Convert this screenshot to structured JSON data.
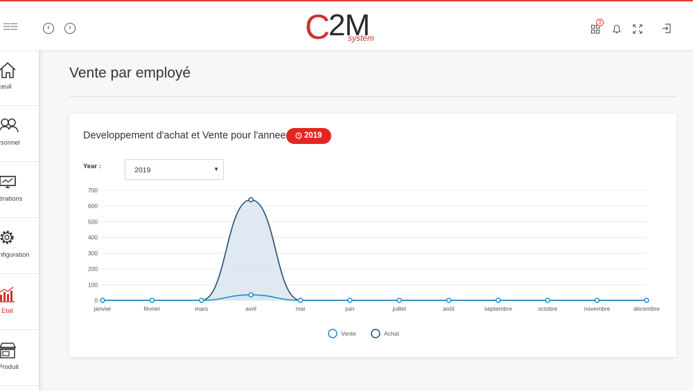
{
  "header": {
    "logo_main_c": "C",
    "logo_main_rest": "2M",
    "logo_sub": "system",
    "notification_count": "3"
  },
  "sidebar": {
    "items": [
      {
        "label": "Acceuil",
        "icon": "home-icon",
        "active": false
      },
      {
        "label": "Personnel",
        "icon": "users-icon",
        "active": false
      },
      {
        "label": "Opérations",
        "icon": "monitor-icon",
        "active": false
      },
      {
        "label": "Configuration",
        "icon": "gear-icon",
        "active": false
      },
      {
        "label": "Etat",
        "icon": "bar-chart-icon",
        "active": true
      },
      {
        "label": "Produit",
        "icon": "shop-icon",
        "active": false
      }
    ]
  },
  "page": {
    "title": "Vente par employé",
    "card_title": "Developpement d'achat et Vente pour l'annee",
    "year_badge": "2019",
    "year_label": "Year :",
    "year_selected": "2019"
  },
  "colors": {
    "accent": "#e52521",
    "vente": "#1b8cc6",
    "achat": "#1f4e79",
    "achat_fill": "#dde6ef"
  },
  "chart_data": {
    "type": "line",
    "categories": [
      "janvier",
      "février",
      "mars",
      "avril",
      "mai",
      "juin",
      "juillet",
      "août",
      "septembre",
      "octobre",
      "novembre",
      "décembre"
    ],
    "series": [
      {
        "name": "Vente",
        "values": [
          0,
          0,
          0,
          35,
          0,
          0,
          0,
          0,
          0,
          0,
          0,
          0
        ]
      },
      {
        "name": "Achat",
        "values": [
          0,
          0,
          0,
          640,
          0,
          0,
          0,
          0,
          0,
          0,
          0,
          0
        ]
      }
    ],
    "yticks": [
      0,
      100,
      200,
      300,
      400,
      500,
      600,
      700
    ],
    "ylim": [
      0,
      700
    ],
    "grid": true,
    "legend_position": "bottom"
  }
}
